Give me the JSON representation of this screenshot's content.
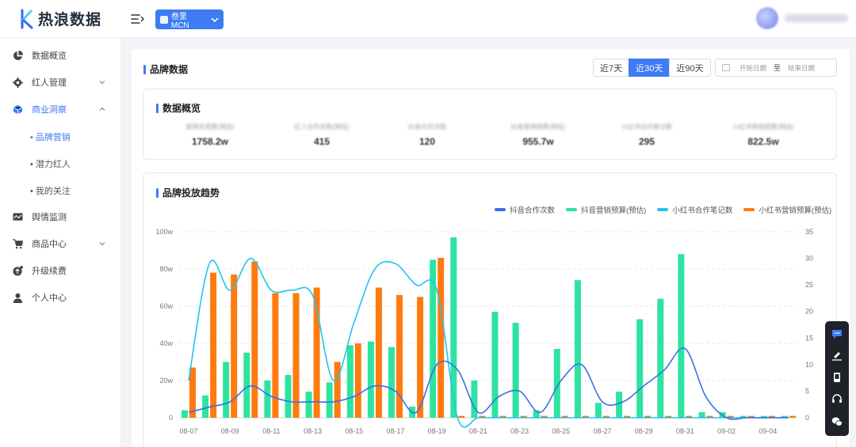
{
  "app": {
    "name": "热浪数据"
  },
  "header": {
    "mcn_label": "叁里MCN"
  },
  "sidebar": {
    "items": [
      {
        "label": "数据概览",
        "icon": "pie-chart-icon"
      },
      {
        "label": "红人管理",
        "icon": "gear-icon"
      },
      {
        "label": "商业洞察",
        "icon": "cube-icon"
      },
      {
        "label": "舆情监测",
        "icon": "monitor-chart-icon"
      },
      {
        "label": "商品中心",
        "icon": "cart-icon"
      },
      {
        "label": "升级续费",
        "icon": "upgrade-icon"
      },
      {
        "label": "个人中心",
        "icon": "user-icon"
      }
    ],
    "subitems": [
      {
        "label": "• 品牌营销"
      },
      {
        "label": "• 潜力红人"
      },
      {
        "label": "• 我的关注"
      }
    ]
  },
  "brand": {
    "title": "品牌数据",
    "ranges": [
      "近7天",
      "近30天",
      "近90天"
    ],
    "active_range": "近30天",
    "date_start_placeholder": "开始日期",
    "date_to": "至",
    "date_end_placeholder": "结束日期"
  },
  "overview": {
    "title": "数据概览",
    "kpis": [
      {
        "label": "营销总预算(预估)",
        "value": "1758.2w"
      },
      {
        "label": "红人合作总数(预估)",
        "value": "415"
      },
      {
        "label": "抖音合作次数",
        "value": "120"
      },
      {
        "label": "抖音营销预算(预估)",
        "value": "955.7w"
      },
      {
        "label": "小红书合作笔记数",
        "value": "295"
      },
      {
        "label": "小红书营销预算(预估)",
        "value": "822.5w"
      }
    ]
  },
  "trend": {
    "title": "品牌投放趋势"
  },
  "colors": {
    "accent": "#3d7cf2",
    "douyin_count": "#3a6ee8",
    "douyin_budget": "#2ee3a0",
    "xhs_count": "#22c3f0",
    "xhs_budget": "#ff7a0f"
  },
  "float_bar": {
    "icons": [
      "chat-icon",
      "edit-icon",
      "phone-icon",
      "headset-icon",
      "wechat-icon"
    ]
  },
  "chart_data": {
    "type": "bar",
    "title": "品牌投放趋势",
    "x": [
      "08-07",
      "08-08",
      "08-09",
      "08-10",
      "08-11",
      "08-12",
      "08-13",
      "08-14",
      "08-15",
      "08-16",
      "08-17",
      "08-18",
      "08-19",
      "08-20",
      "08-21",
      "08-22",
      "08-23",
      "08-24",
      "08-25",
      "08-26",
      "08-27",
      "08-28",
      "08-29",
      "08-30",
      "08-31",
      "09-01",
      "09-02",
      "09-03",
      "09-04",
      "09-05"
    ],
    "x_tick_labels": [
      "08-07",
      "08-09",
      "08-11",
      "08-13",
      "08-15",
      "08-17",
      "08-19",
      "08-21",
      "08-23",
      "08-25",
      "08-27",
      "08-29",
      "08-31",
      "09-02",
      "09-04"
    ],
    "y_left": {
      "ticks": [
        "0",
        "20w",
        "40w",
        "60w",
        "80w",
        "100w"
      ],
      "range": [
        0,
        100
      ]
    },
    "y_right": {
      "ticks": [
        "0",
        "5",
        "10",
        "15",
        "20",
        "25",
        "30",
        "35"
      ],
      "range": [
        0,
        35
      ]
    },
    "grid": true,
    "legend_position": "top-right",
    "series": [
      {
        "name": "抖音合作次数",
        "type": "line",
        "axis": "right",
        "values": [
          1,
          2,
          3,
          6,
          4,
          3,
          3,
          3,
          4,
          6,
          5,
          1,
          10,
          9,
          1,
          4,
          5,
          1,
          7,
          10,
          3,
          3,
          6,
          9,
          13,
          4,
          0,
          0,
          0,
          0
        ]
      },
      {
        "name": "抖音营销预算(预估)",
        "type": "bar",
        "axis": "left",
        "values": [
          4,
          12,
          30,
          35,
          20,
          23,
          14,
          19,
          39,
          41,
          38,
          6,
          85,
          97,
          20,
          57,
          51,
          4,
          37,
          74,
          8,
          14,
          53,
          64,
          88,
          3,
          3,
          1,
          1,
          1
        ]
      },
      {
        "name": "小红书合作笔记数",
        "type": "line",
        "axis": "right",
        "values": [
          7,
          29,
          24,
          30,
          24,
          24,
          23,
          7,
          18,
          28,
          29,
          25,
          24,
          0,
          0,
          0,
          0,
          0,
          0,
          0,
          0,
          0,
          0,
          0,
          0,
          0,
          0,
          0,
          0,
          0
        ]
      },
      {
        "name": "小红书营销预算(预估)",
        "type": "bar",
        "axis": "left",
        "values": [
          27,
          78,
          77,
          84,
          67,
          67,
          70,
          30,
          40,
          70,
          66,
          65,
          86,
          1,
          1,
          1,
          1,
          1,
          1,
          1,
          1,
          1,
          1,
          1,
          1,
          1,
          1,
          1,
          1,
          1
        ]
      }
    ]
  }
}
